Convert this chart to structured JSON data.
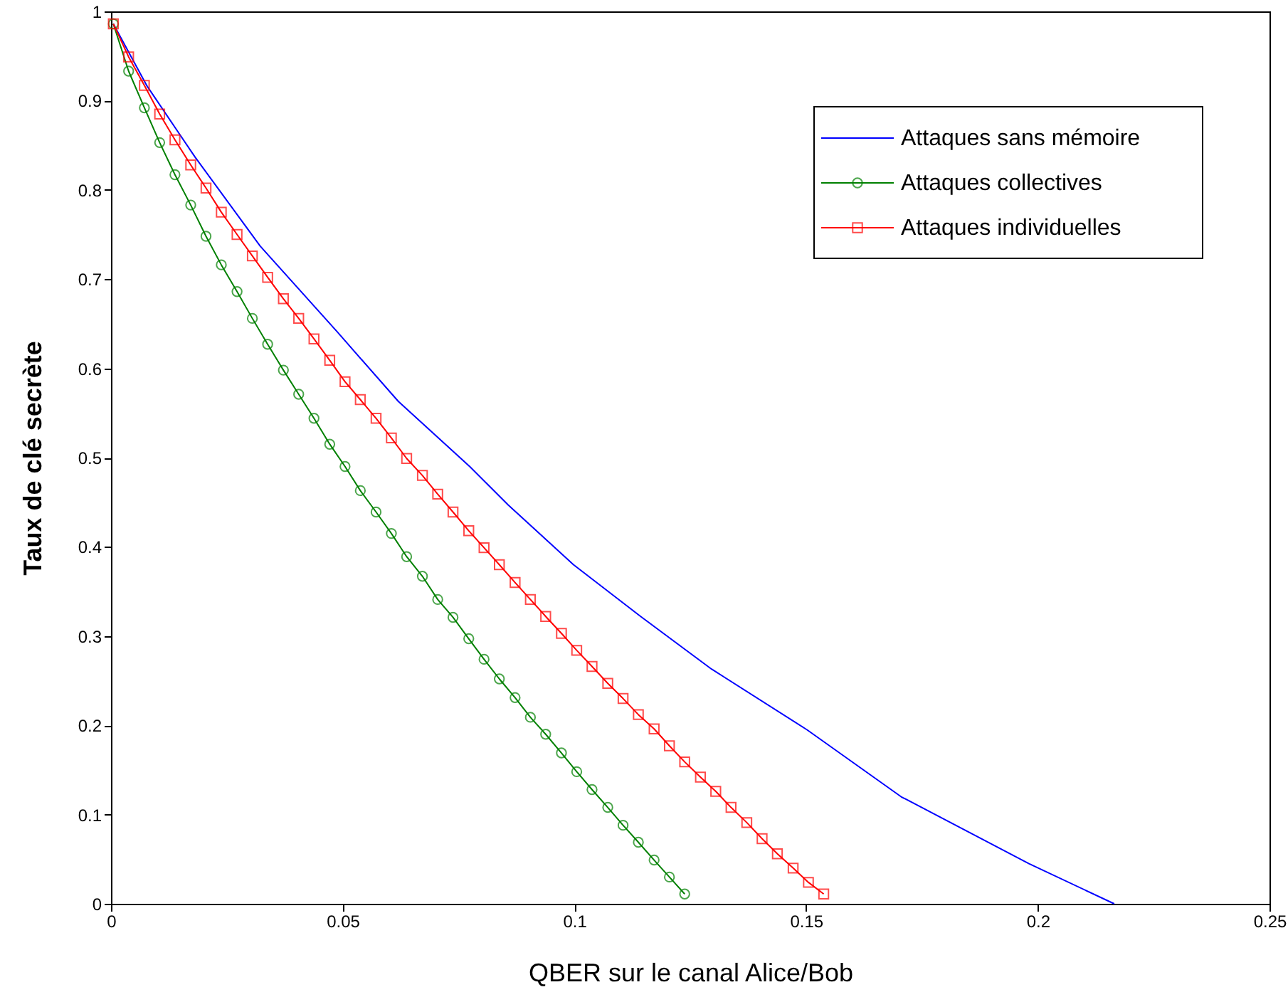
{
  "chart_data": {
    "type": "line",
    "xlabel": "QBER sur le canal Alice/Bob",
    "ylabel": "Taux de clé secrète",
    "xlim": [
      0,
      0.25
    ],
    "xticks": [
      0,
      0.05,
      0.1,
      0.15,
      0.2,
      0.25
    ],
    "ylim": [
      0,
      1
    ],
    "yticks": [
      0,
      0.1,
      0.2,
      0.3,
      0.4,
      0.5,
      0.6,
      0.7,
      0.8,
      0.9,
      1
    ],
    "grid": false,
    "legend": "top right",
    "line_style": "solid",
    "series": [
      {
        "name": "Attaques sans mémoire",
        "color": "#0000ff",
        "marker": "none",
        "x": [
          0.0005,
          0.0077,
          0.0181,
          0.0322,
          0.0488,
          0.062,
          0.0774,
          0.0857,
          0.0998,
          0.1143,
          0.1296,
          0.1502,
          0.1705,
          0.1981,
          0.2165
        ],
        "values": [
          0.986,
          0.917,
          0.837,
          0.737,
          0.641,
          0.563,
          0.49,
          0.447,
          0.38,
          0.322,
          0.263,
          0.195,
          0.12,
          0.045,
          0.0
        ]
      },
      {
        "name": "Attaques collectives",
        "color": "#008000",
        "marker": "circle",
        "x": [
          0.0005,
          0.0038,
          0.0072,
          0.0105,
          0.0138,
          0.0172,
          0.0205,
          0.0238,
          0.0272,
          0.0305,
          0.0338,
          0.0372,
          0.0405,
          0.0438,
          0.0472,
          0.0505,
          0.0538,
          0.0572,
          0.0605,
          0.0638,
          0.0672,
          0.0705,
          0.0738,
          0.0772,
          0.0805,
          0.0838,
          0.0872,
          0.0905,
          0.0938,
          0.0972,
          0.1005,
          0.1038,
          0.1072,
          0.1105,
          0.1138,
          0.1172,
          0.1205,
          0.1238
        ],
        "values": [
          0.986,
          0.933,
          0.892,
          0.853,
          0.817,
          0.783,
          0.748,
          0.716,
          0.686,
          0.656,
          0.627,
          0.598,
          0.571,
          0.544,
          0.515,
          0.49,
          0.463,
          0.439,
          0.415,
          0.389,
          0.367,
          0.341,
          0.321,
          0.297,
          0.274,
          0.252,
          0.231,
          0.209,
          0.19,
          0.169,
          0.148,
          0.128,
          0.108,
          0.088,
          0.069,
          0.049,
          0.03,
          0.011
        ]
      },
      {
        "name": "Attaques individuelles",
        "color": "#ff0000",
        "marker": "square",
        "x": [
          0.0005,
          0.0038,
          0.0072,
          0.0105,
          0.0138,
          0.0172,
          0.0205,
          0.0238,
          0.0272,
          0.0305,
          0.0338,
          0.0372,
          0.0405,
          0.0438,
          0.0472,
          0.0505,
          0.0538,
          0.0572,
          0.0605,
          0.0638,
          0.0672,
          0.0705,
          0.0738,
          0.0772,
          0.0805,
          0.0838,
          0.0872,
          0.0905,
          0.0938,
          0.0972,
          0.1005,
          0.1038,
          0.1072,
          0.1105,
          0.1138,
          0.1172,
          0.1205,
          0.1238,
          0.1272,
          0.1305,
          0.1338,
          0.1372,
          0.1405,
          0.1438,
          0.1472,
          0.1505,
          0.1538
        ],
        "values": [
          0.986,
          0.949,
          0.917,
          0.885,
          0.856,
          0.828,
          0.802,
          0.775,
          0.75,
          0.726,
          0.702,
          0.678,
          0.656,
          0.633,
          0.609,
          0.585,
          0.565,
          0.544,
          0.522,
          0.499,
          0.48,
          0.459,
          0.439,
          0.418,
          0.399,
          0.38,
          0.36,
          0.341,
          0.322,
          0.303,
          0.284,
          0.266,
          0.247,
          0.23,
          0.212,
          0.196,
          0.177,
          0.159,
          0.142,
          0.126,
          0.108,
          0.091,
          0.073,
          0.056,
          0.04,
          0.024,
          0.011
        ]
      }
    ]
  }
}
